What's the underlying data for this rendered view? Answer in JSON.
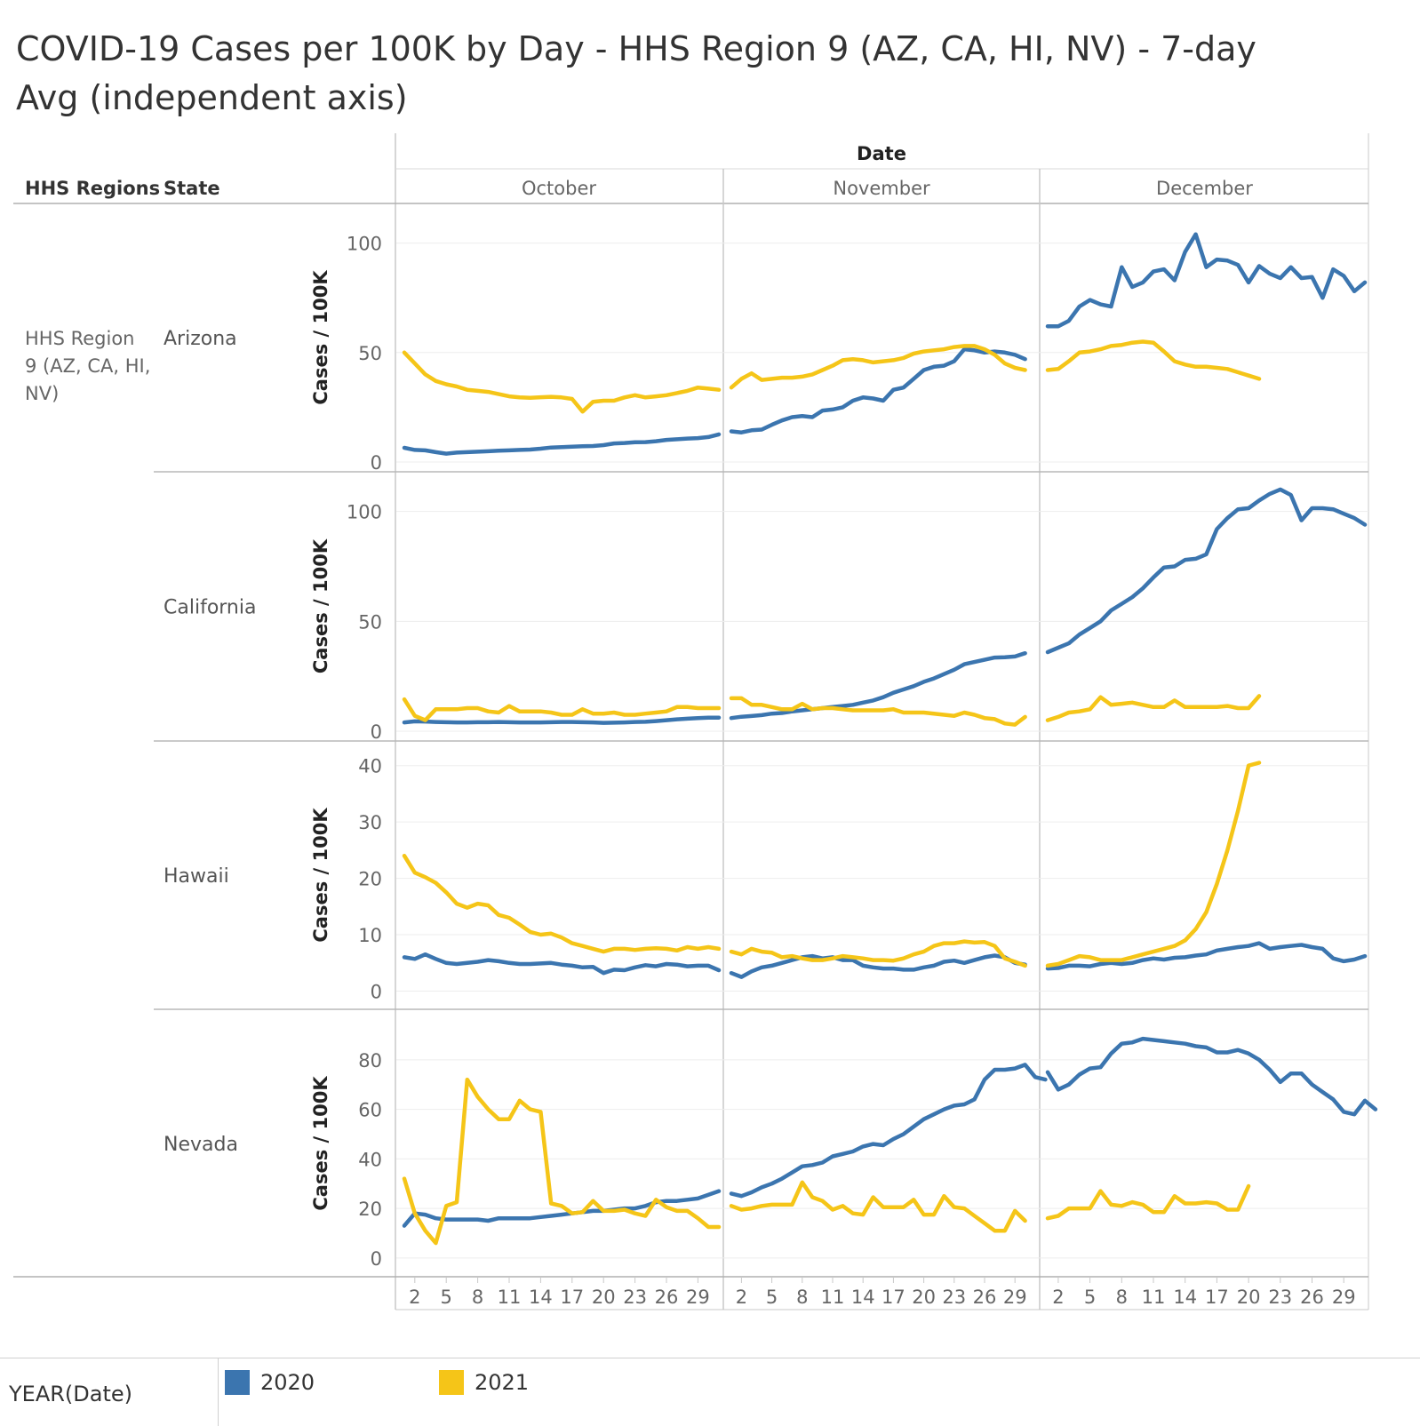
{
  "title": "COVID-19 Cases per 100K by Day - HHS Region 9 (AZ, CA, HI, NV) - 7-day Avg (independent axis)",
  "header": {
    "regions": "HHS Regions",
    "state": "State",
    "date": "Date"
  },
  "region_label": [
    "HHS Region",
    "9 (AZ, CA, HI,",
    "NV)"
  ],
  "legend": {
    "title": "YEAR(Date)",
    "items": [
      {
        "label": "2020",
        "color": "#3b75af"
      },
      {
        "label": "2021",
        "color": "#f5c518"
      }
    ]
  },
  "chart_data": {
    "type": "line",
    "title": "COVID-19 Cases per 100K by Day - HHS Region 9 (AZ, CA, HI, NV) - 7-day Avg (independent axis)",
    "ylabel": "Cases / 100K",
    "xlabel": "Date",
    "columns": [
      "October",
      "November",
      "December"
    ],
    "x_ticks": [
      2,
      5,
      8,
      11,
      14,
      17,
      20,
      23,
      26,
      29
    ],
    "grid": true,
    "legend_position": "bottom",
    "colors": {
      "2020": "#3b75af",
      "2021": "#f5c518"
    },
    "rows": [
      {
        "state": "Arizona",
        "ylim": [
          0,
          112
        ],
        "yticks": [
          0,
          50,
          100
        ],
        "series": [
          {
            "name": "2020",
            "months": [
              [
                6.5,
                5.5,
                5.3,
                4.5,
                3.8,
                4.3,
                4.5,
                4.7,
                4.9,
                5.2,
                5.3,
                5.5,
                5.7,
                6.1,
                6.6,
                6.8,
                7.0,
                7.2,
                7.3,
                7.7,
                8.5,
                8.7,
                9.0,
                9.1,
                9.5,
                10.1,
                10.4,
                10.7,
                10.9,
                11.4,
                12.6
              ],
              [
                14.0,
                13.5,
                14.5,
                14.8,
                17.0,
                19.0,
                20.5,
                21.0,
                20.5,
                23.5,
                24.0,
                25.0,
                28.0,
                29.5,
                29.0,
                28.0,
                33.0,
                34.0,
                38.0,
                42.0,
                43.5,
                44.0,
                46.0,
                51.5,
                51.0,
                50.0,
                50.5,
                50.0,
                49.0,
                47.0
              ],
              [
                62.0,
                62.0,
                64.5,
                71.0,
                74.0,
                72.0,
                71.0,
                89.0,
                80.0,
                82.0,
                87.0,
                88.0,
                83.0,
                96.0,
                104.0,
                89.0,
                92.5,
                92.0,
                90.0,
                82.0,
                89.5,
                86.0,
                84.0,
                89.0,
                84.0,
                84.5,
                75.0,
                88.0,
                85.0,
                78.0,
                82.0
              ]
            ]
          },
          {
            "name": "2021",
            "months": [
              [
                50.0,
                45.0,
                40.0,
                37.0,
                35.5,
                34.5,
                33.0,
                32.5,
                32.0,
                31.0,
                30.0,
                29.5,
                29.3,
                29.6,
                29.8,
                29.5,
                28.8,
                23.0,
                27.5,
                28.0,
                28.0,
                29.5,
                30.5,
                29.5,
                30.0,
                30.5,
                31.5,
                32.5,
                34.0,
                33.5,
                33.0
              ],
              [
                34.0,
                38.0,
                40.5,
                37.5,
                38.0,
                38.5,
                38.5,
                39.0,
                40.0,
                42.0,
                44.0,
                46.5,
                47.0,
                46.5,
                45.5,
                46.0,
                46.5,
                47.5,
                49.5,
                50.5,
                51.0,
                51.5,
                52.5,
                53.0,
                53.0,
                51.5,
                49.0,
                45.0,
                43.0,
                42.0
              ],
              [
                42.0,
                42.5,
                46.0,
                50.0,
                50.5,
                51.5,
                53.0,
                53.5,
                54.5,
                55.0,
                54.5,
                50.5,
                46.0,
                44.5,
                43.5,
                43.5,
                43.0,
                42.5,
                41.0,
                39.5,
                38.0
              ]
            ]
          }
        ]
      },
      {
        "state": "California",
        "ylim": [
          0,
          112
        ],
        "yticks": [
          0,
          50,
          100
        ],
        "series": [
          {
            "name": "2020",
            "months": [
              [
                4.0,
                4.5,
                4.4,
                4.2,
                4.1,
                4.0,
                4.0,
                4.1,
                4.1,
                4.2,
                4.1,
                4.0,
                4.0,
                4.0,
                4.1,
                4.2,
                4.2,
                4.1,
                4.0,
                3.8,
                3.9,
                4.0,
                4.2,
                4.3,
                4.6,
                5.0,
                5.4,
                5.7,
                6.0,
                6.2,
                6.2
              ],
              [
                6.0,
                6.6,
                6.9,
                7.3,
                8.0,
                8.3,
                9.0,
                9.5,
                10.0,
                10.5,
                11.0,
                11.5,
                12.0,
                13.0,
                14.0,
                15.5,
                17.5,
                19.0,
                20.5,
                22.5,
                24.0,
                26.0,
                28.0,
                30.5,
                31.5,
                32.5,
                33.5,
                33.7,
                34.0,
                35.5
              ],
              [
                36.0,
                38.0,
                40.0,
                44.0,
                47.0,
                50.0,
                55.0,
                58.0,
                61.0,
                65.0,
                70.0,
                74.5,
                75.0,
                78.0,
                78.5,
                80.5,
                92.0,
                97.0,
                101.0,
                101.5,
                105.0,
                108.0,
                110.0,
                107.5,
                96.0,
                101.5,
                101.5,
                101.0,
                99.0,
                97.0,
                94.0
              ]
            ]
          },
          {
            "name": "2021",
            "months": [
              [
                14.5,
                7.0,
                5.0,
                10.0,
                10.0,
                10.0,
                10.5,
                10.5,
                9.0,
                8.5,
                11.5,
                9.0,
                9.0,
                9.0,
                8.5,
                7.5,
                7.5,
                10.0,
                8.0,
                8.0,
                8.5,
                7.5,
                7.5,
                8.0,
                8.5,
                9.0,
                11.0,
                11.0,
                10.5,
                10.5,
                10.5
              ],
              [
                15.0,
                15.0,
                12.0,
                12.0,
                11.0,
                10.0,
                10.0,
                12.5,
                10.0,
                10.5,
                10.5,
                10.0,
                9.5,
                9.5,
                9.5,
                9.5,
                10.0,
                8.5,
                8.5,
                8.5,
                8.0,
                7.5,
                7.0,
                8.5,
                7.5,
                6.0,
                5.5,
                3.5,
                3.0,
                6.5
              ],
              [
                5.0,
                6.5,
                8.5,
                9.0,
                10.0,
                15.5,
                12.0,
                12.5,
                13.0,
                12.0,
                11.0,
                11.0,
                14.0,
                11.0,
                11.0,
                11.0,
                11.0,
                11.5,
                10.5,
                10.5,
                16.0
              ]
            ]
          }
        ]
      },
      {
        "state": "Hawaii",
        "ylim": [
          -1.5,
          42
        ],
        "yticks": [
          0,
          10,
          20,
          30,
          40
        ],
        "series": [
          {
            "name": "2020",
            "months": [
              [
                6.0,
                5.7,
                6.5,
                5.7,
                5.0,
                4.8,
                5.0,
                5.2,
                5.5,
                5.3,
                5.0,
                4.8,
                4.8,
                4.9,
                5.0,
                4.7,
                4.5,
                4.2,
                4.3,
                3.2,
                3.8,
                3.7,
                4.2,
                4.6,
                4.4,
                4.8,
                4.7,
                4.4,
                4.5,
                4.5,
                3.7
              ],
              [
                3.2,
                2.5,
                3.5,
                4.2,
                4.5,
                5.0,
                5.5,
                6.0,
                6.2,
                5.8,
                6.0,
                5.5,
                5.5,
                4.5,
                4.2,
                4.0,
                4.0,
                3.8,
                3.8,
                4.2,
                4.5,
                5.2,
                5.4,
                5.0,
                5.5,
                6.0,
                6.3,
                6.0,
                5.0,
                4.7
              ],
              [
                4.0,
                4.1,
                4.5,
                4.5,
                4.4,
                4.8,
                5.0,
                4.8,
                5.0,
                5.5,
                5.8,
                5.6,
                5.9,
                6.0,
                6.3,
                6.5,
                7.2,
                7.5,
                7.8,
                8.0,
                8.5,
                7.5,
                7.8,
                8.0,
                8.2,
                7.8,
                7.5,
                5.8,
                5.3,
                5.6,
                6.2
              ]
            ]
          },
          {
            "name": "2021",
            "months": [
              [
                24.0,
                21.0,
                20.2,
                19.2,
                17.5,
                15.5,
                14.8,
                15.5,
                15.2,
                13.5,
                13.0,
                11.8,
                10.5,
                10.0,
                10.2,
                9.5,
                8.5,
                8.0,
                7.5,
                7.0,
                7.5,
                7.5,
                7.3,
                7.5,
                7.6,
                7.5,
                7.2,
                7.8,
                7.5,
                7.8,
                7.5
              ],
              [
                7.0,
                6.5,
                7.5,
                7.0,
                6.8,
                6.0,
                6.2,
                5.8,
                5.5,
                5.5,
                5.8,
                6.2,
                6.0,
                5.8,
                5.5,
                5.5,
                5.4,
                5.8,
                6.5,
                7.0,
                8.0,
                8.5,
                8.5,
                8.8,
                8.6,
                8.7,
                8.0,
                5.8,
                5.2,
                4.5
              ],
              [
                4.5,
                4.8,
                5.5,
                6.2,
                6.0,
                5.5,
                5.5,
                5.5,
                6.0,
                6.5,
                7.0,
                7.5,
                8.0,
                9.0,
                11.0,
                14.0,
                19.0,
                25.0,
                32.0,
                40.0,
                40.5
              ]
            ]
          }
        ]
      },
      {
        "state": "Nevada",
        "ylim": [
          -4,
          95
        ],
        "yticks": [
          0,
          20,
          40,
          60,
          80
        ],
        "series": [
          {
            "name": "2020",
            "months": [
              [
                13.0,
                18.0,
                17.5,
                16.0,
                15.5,
                15.5,
                15.5,
                15.5,
                15.0,
                16.0,
                16.0,
                16.0,
                16.0,
                16.5,
                17.0,
                17.5,
                18.0,
                18.5,
                19.0,
                19.0,
                19.5,
                20.0,
                20.0,
                21.0,
                22.5,
                23.0,
                23.0,
                23.5,
                24.0,
                25.5,
                27.0
              ],
              [
                26.0,
                25.0,
                26.5,
                28.5,
                30.0,
                32.0,
                34.5,
                37.0,
                37.5,
                38.5,
                41.0,
                42.0,
                43.0,
                45.0,
                46.0,
                45.5,
                48.0,
                50.0,
                53.0,
                56.0,
                58.0,
                60.0,
                61.5,
                62.0,
                64.0,
                72.0,
                76.0,
                76.0,
                76.5,
                78.0,
                73.0,
                72.0
              ],
              [
                75.0,
                68.0,
                70.0,
                74.0,
                76.5,
                77.0,
                82.5,
                86.5,
                87.0,
                88.5,
                88.0,
                87.5,
                87.0,
                86.5,
                85.5,
                85.0,
                83.0,
                83.0,
                84.0,
                82.5,
                80.0,
                76.0,
                71.0,
                74.5,
                74.5,
                70.0,
                67.0,
                64.0,
                59.0,
                58.0,
                63.5,
                60.0
              ]
            ]
          },
          {
            "name": "2021",
            "months": [
              [
                32.0,
                18.0,
                11.0,
                6.0,
                21.0,
                22.5,
                72.0,
                65.0,
                60.0,
                56.0,
                56.0,
                63.5,
                60.0,
                59.0,
                22.0,
                21.0,
                18.0,
                18.5,
                23.0,
                19.0,
                19.0,
                19.5,
                18.0,
                17.0,
                23.5,
                20.5,
                19.0,
                19.0,
                16.0,
                12.5,
                12.5
              ],
              [
                21.0,
                19.5,
                20.0,
                21.0,
                21.5,
                21.5,
                21.5,
                30.5,
                24.5,
                23.0,
                19.5,
                21.0,
                18.0,
                17.5,
                24.5,
                20.5,
                20.5,
                20.5,
                23.5,
                17.5,
                17.5,
                25.0,
                20.5,
                20.0,
                17.0,
                14.0,
                11.0,
                11.0,
                19.0,
                15.0
              ],
              [
                16.0,
                17.0,
                20.0,
                20.0,
                20.0,
                27.0,
                21.5,
                21.0,
                22.5,
                21.5,
                18.5,
                18.5,
                25.0,
                22.0,
                22.0,
                22.5,
                22.0,
                19.5,
                19.5,
                29.0
              ]
            ]
          }
        ]
      }
    ]
  }
}
